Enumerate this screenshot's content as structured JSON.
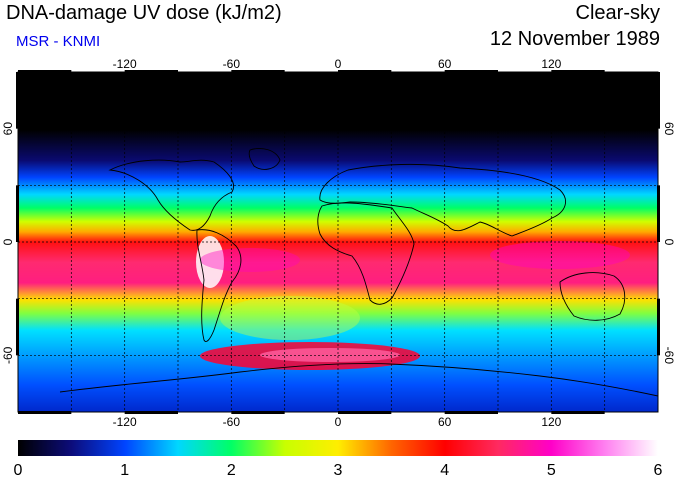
{
  "header": {
    "title": "DNA-damage UV dose (kJ/m2)",
    "subtitle": "MSR - KNMI",
    "mode": "Clear-sky",
    "date": "12 November 1989"
  },
  "colors": {
    "subtitle": "#0000ee",
    "scale": [
      "#000000",
      "#0c0c7a",
      "#0044ff",
      "#00d7ff",
      "#00ff66",
      "#c8ff00",
      "#ffee00",
      "#ff6600",
      "#ff0000",
      "#ff2a60",
      "#ff00c8",
      "#ff80f0",
      "#ffffff"
    ]
  },
  "map": {
    "projection": "equirectangular",
    "lon_ticks": [
      "-120",
      "-60",
      "0",
      "60",
      "120"
    ],
    "lon_values": [
      -120,
      -60,
      0,
      60,
      120
    ],
    "lat_ticks": [
      "60",
      "0",
      "-60"
    ],
    "lat_values": [
      60,
      0,
      -60
    ],
    "gridlines": "dashed every 30 degrees",
    "lat_range": [
      -90,
      90
    ],
    "lon_range": [
      -180,
      180
    ]
  },
  "colorbar": {
    "min": 0,
    "max": 6,
    "labels": [
      "0",
      "1",
      "2",
      "3",
      "4",
      "5",
      "6"
    ],
    "unit": "kJ/m2"
  }
}
